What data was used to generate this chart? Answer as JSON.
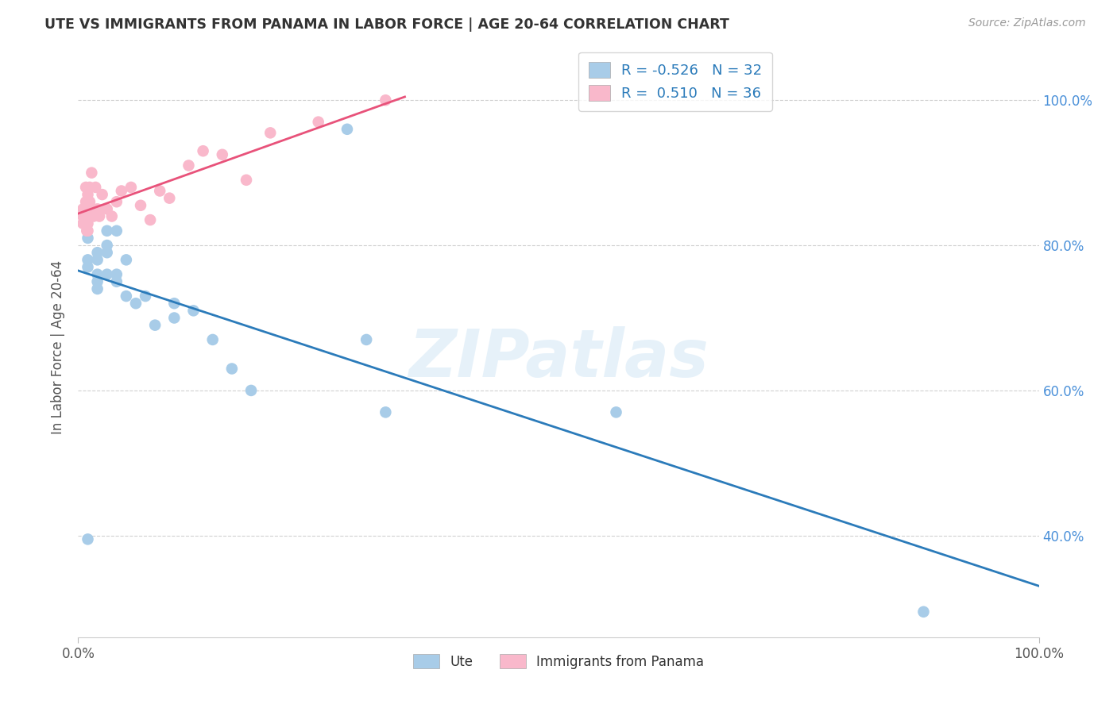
{
  "title": "UTE VS IMMIGRANTS FROM PANAMA IN LABOR FORCE | AGE 20-64 CORRELATION CHART",
  "source": "Source: ZipAtlas.com",
  "ylabel": "In Labor Force | Age 20-64",
  "ytick_labels": [
    "40.0%",
    "60.0%",
    "80.0%",
    "100.0%"
  ],
  "ytick_values": [
    0.4,
    0.6,
    0.8,
    1.0
  ],
  "xlim": [
    0.0,
    1.0
  ],
  "ylim": [
    0.26,
    1.06
  ],
  "legend_r1": "R = -0.526   N = 32",
  "legend_r2": "R =  0.510   N = 36",
  "watermark": "ZIPatlas",
  "blue_color": "#a8cce8",
  "pink_color": "#f9b8cb",
  "blue_line_color": "#2b7bba",
  "pink_line_color": "#e8527a",
  "ute_label": "Ute",
  "panama_label": "Immigrants from Panama",
  "ute_x": [
    0.01,
    0.01,
    0.01,
    0.01,
    0.02,
    0.02,
    0.02,
    0.02,
    0.02,
    0.03,
    0.03,
    0.03,
    0.03,
    0.04,
    0.04,
    0.04,
    0.05,
    0.05,
    0.06,
    0.07,
    0.08,
    0.1,
    0.1,
    0.12,
    0.14,
    0.16,
    0.18,
    0.28,
    0.3,
    0.32,
    0.56,
    0.88
  ],
  "ute_y": [
    0.395,
    0.77,
    0.78,
    0.81,
    0.79,
    0.78,
    0.76,
    0.75,
    0.74,
    0.82,
    0.8,
    0.79,
    0.76,
    0.82,
    0.76,
    0.75,
    0.78,
    0.73,
    0.72,
    0.73,
    0.69,
    0.72,
    0.7,
    0.71,
    0.67,
    0.63,
    0.6,
    0.96,
    0.67,
    0.57,
    0.57,
    0.295
  ],
  "panama_x": [
    0.005,
    0.005,
    0.005,
    0.008,
    0.008,
    0.009,
    0.009,
    0.01,
    0.01,
    0.01,
    0.01,
    0.012,
    0.012,
    0.014,
    0.015,
    0.016,
    0.018,
    0.02,
    0.022,
    0.025,
    0.03,
    0.035,
    0.04,
    0.045,
    0.055,
    0.065,
    0.075,
    0.085,
    0.095,
    0.115,
    0.13,
    0.15,
    0.175,
    0.2,
    0.25,
    0.32
  ],
  "panama_y": [
    0.83,
    0.85,
    0.84,
    0.88,
    0.86,
    0.84,
    0.82,
    0.87,
    0.85,
    0.83,
    0.82,
    0.88,
    0.86,
    0.9,
    0.85,
    0.84,
    0.88,
    0.85,
    0.84,
    0.87,
    0.85,
    0.84,
    0.86,
    0.875,
    0.88,
    0.855,
    0.835,
    0.875,
    0.865,
    0.91,
    0.93,
    0.925,
    0.89,
    0.955,
    0.97,
    1.0
  ]
}
